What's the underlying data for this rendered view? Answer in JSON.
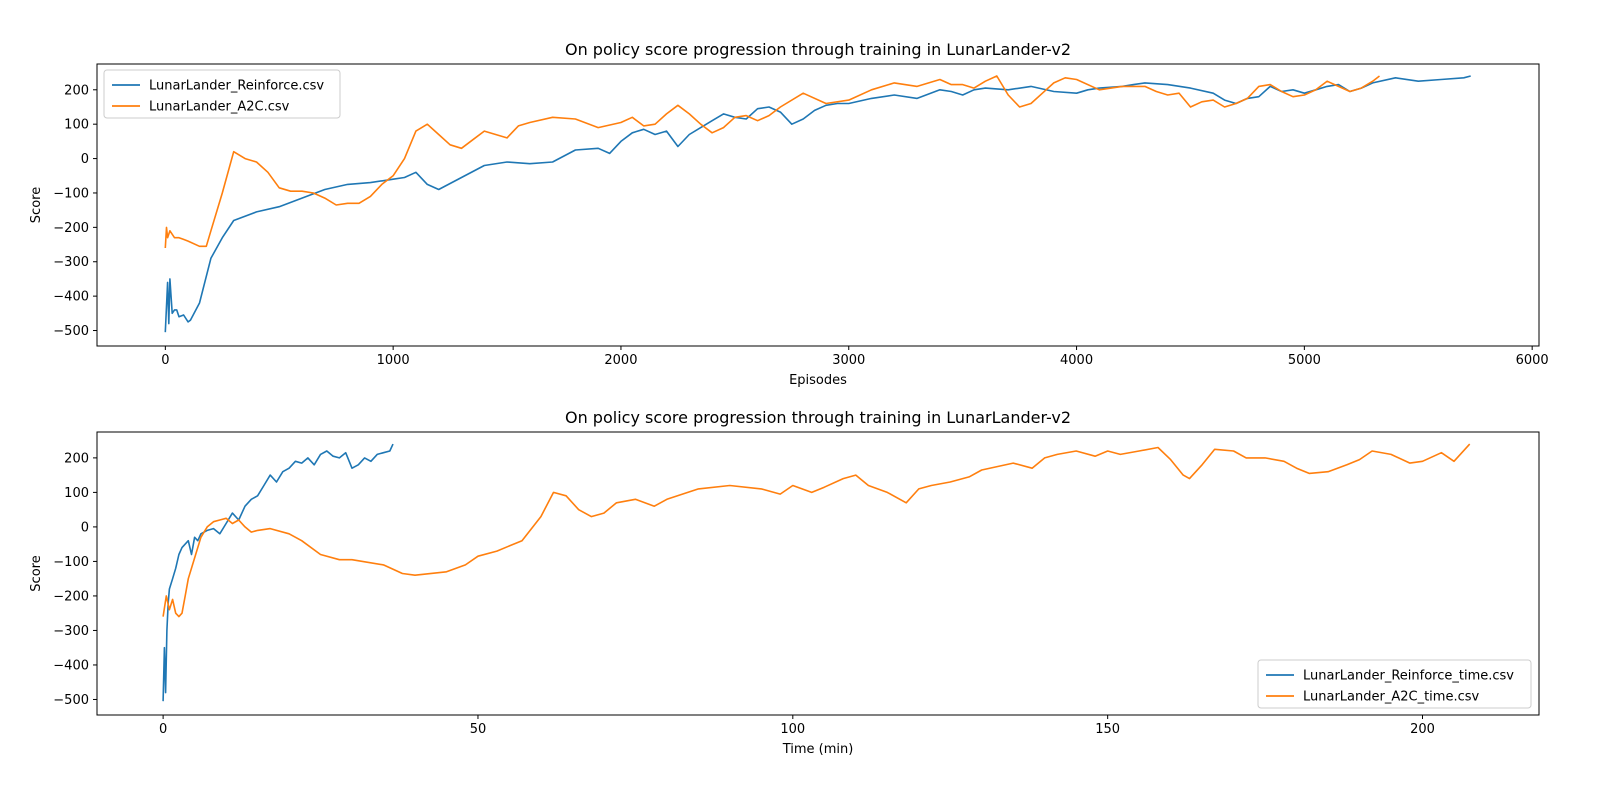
{
  "colors": {
    "series1": "#1f77b4",
    "series2": "#ff7f0e"
  },
  "chart_data": [
    {
      "type": "line",
      "title": "On policy score progression through training in LunarLander-v2",
      "xlabel": "Episodes",
      "ylabel": "Score",
      "xlim": [
        -300,
        6030
      ],
      "ylim": [
        -545,
        275
      ],
      "xticks": [
        0,
        1000,
        2000,
        3000,
        4000,
        5000,
        6000
      ],
      "xtick_labels": [
        "0",
        "1000",
        "2000",
        "3000",
        "4000",
        "5000",
        "6000"
      ],
      "yticks": [
        -500,
        -400,
        -300,
        -200,
        -100,
        0,
        100,
        200
      ],
      "ytick_labels": [
        "−500",
        "−400",
        "−300",
        "−200",
        "−100",
        "0",
        "100",
        "200"
      ],
      "legend_position": "upper-left",
      "series": [
        {
          "name": "LunarLander_Reinforce.csv",
          "color": "#1f77b4",
          "x": [
            0,
            10,
            15,
            20,
            30,
            40,
            50,
            60,
            80,
            100,
            110,
            150,
            200,
            250,
            300,
            400,
            500,
            600,
            700,
            800,
            900,
            1000,
            1050,
            1100,
            1150,
            1200,
            1300,
            1400,
            1500,
            1600,
            1700,
            1800,
            1900,
            1950,
            2000,
            2050,
            2100,
            2150,
            2200,
            2250,
            2300,
            2400,
            2450,
            2500,
            2550,
            2600,
            2650,
            2700,
            2750,
            2800,
            2850,
            2900,
            2950,
            3000,
            3100,
            3200,
            3300,
            3400,
            3450,
            3500,
            3550,
            3600,
            3700,
            3800,
            3900,
            4000,
            4050,
            4100,
            4200,
            4250,
            4300,
            4400,
            4500,
            4600,
            4650,
            4700,
            4750,
            4800,
            4850,
            4900,
            4950,
            5000,
            5050,
            5100,
            5150,
            5200,
            5250,
            5300,
            5400,
            5500,
            5600,
            5700,
            5730
          ],
          "y": [
            -505,
            -360,
            -480,
            -350,
            -450,
            -440,
            -440,
            -460,
            -455,
            -475,
            -470,
            -420,
            -290,
            -230,
            -180,
            -155,
            -140,
            -115,
            -90,
            -75,
            -70,
            -60,
            -55,
            -40,
            -75,
            -90,
            -55,
            -20,
            -10,
            -15,
            -10,
            25,
            30,
            15,
            50,
            75,
            85,
            70,
            80,
            35,
            70,
            110,
            130,
            120,
            115,
            145,
            150,
            135,
            100,
            115,
            140,
            155,
            160,
            160,
            175,
            185,
            175,
            200,
            195,
            185,
            200,
            205,
            200,
            210,
            195,
            190,
            200,
            205,
            210,
            215,
            220,
            215,
            205,
            190,
            170,
            160,
            175,
            180,
            210,
            195,
            200,
            190,
            200,
            210,
            215,
            195,
            205,
            220,
            235,
            225,
            230,
            235,
            240
          ]
        },
        {
          "name": "LunarLander_A2C.csv",
          "color": "#ff7f0e",
          "x": [
            0,
            5,
            10,
            20,
            40,
            60,
            80,
            100,
            150,
            180,
            200,
            250,
            300,
            350,
            400,
            450,
            500,
            550,
            600,
            650,
            700,
            750,
            800,
            850,
            900,
            950,
            1000,
            1050,
            1100,
            1150,
            1200,
            1250,
            1300,
            1350,
            1400,
            1500,
            1550,
            1600,
            1700,
            1800,
            1900,
            2000,
            2050,
            2100,
            2150,
            2200,
            2250,
            2300,
            2350,
            2400,
            2450,
            2500,
            2550,
            2600,
            2650,
            2700,
            2800,
            2900,
            3000,
            3100,
            3200,
            3300,
            3400,
            3450,
            3500,
            3550,
            3600,
            3650,
            3700,
            3750,
            3800,
            3850,
            3900,
            3950,
            4000,
            4100,
            4200,
            4300,
            4350,
            4400,
            4450,
            4500,
            4550,
            4600,
            4650,
            4700,
            4750,
            4800,
            4850,
            4900,
            4950,
            5000,
            5050,
            5100,
            5150,
            5200,
            5250,
            5300,
            5330
          ],
          "y": [
            -260,
            -200,
            -230,
            -210,
            -230,
            -230,
            -235,
            -240,
            -255,
            -255,
            -210,
            -100,
            20,
            0,
            -10,
            -40,
            -85,
            -95,
            -95,
            -100,
            -115,
            -135,
            -130,
            -130,
            -110,
            -75,
            -50,
            0,
            80,
            100,
            70,
            40,
            30,
            55,
            80,
            60,
            95,
            105,
            120,
            115,
            90,
            105,
            120,
            95,
            100,
            130,
            155,
            130,
            100,
            75,
            90,
            120,
            125,
            110,
            125,
            150,
            190,
            160,
            170,
            200,
            220,
            210,
            230,
            215,
            215,
            205,
            225,
            240,
            185,
            150,
            160,
            190,
            220,
            235,
            230,
            200,
            210,
            210,
            195,
            185,
            190,
            150,
            165,
            170,
            150,
            160,
            175,
            210,
            215,
            195,
            180,
            185,
            200,
            225,
            210,
            195,
            205,
            225,
            240
          ]
        }
      ]
    },
    {
      "type": "line",
      "title": "On policy score progression through training in LunarLander-v2",
      "xlabel": "Time (min)",
      "ylabel": "Score",
      "xlim": [
        -10.5,
        218.5
      ],
      "ylim": [
        -545,
        275
      ],
      "xticks": [
        0,
        50,
        100,
        150,
        200
      ],
      "xtick_labels": [
        "0",
        "50",
        "100",
        "150",
        "200"
      ],
      "yticks": [
        -500,
        -400,
        -300,
        -200,
        -100,
        0,
        100,
        200
      ],
      "ytick_labels": [
        "−500",
        "−400",
        "−300",
        "−200",
        "−100",
        "0",
        "100",
        "200"
      ],
      "legend_position": "lower-right",
      "series": [
        {
          "name": "LunarLander_Reinforce_time.csv",
          "color": "#1f77b4",
          "x": [
            0,
            0.2,
            0.4,
            0.6,
            0.8,
            1,
            1.5,
            2,
            2.5,
            3,
            4,
            4.5,
            5,
            5.5,
            6,
            7,
            8,
            9,
            10,
            11,
            12,
            13,
            14,
            15,
            16,
            17,
            18,
            19,
            20,
            21,
            22,
            23,
            24,
            25,
            26,
            27,
            28,
            29,
            30,
            31,
            32,
            33,
            34,
            35,
            36,
            36.5
          ],
          "y": [
            -505,
            -350,
            -480,
            -300,
            -220,
            -180,
            -150,
            -120,
            -80,
            -60,
            -40,
            -80,
            -30,
            -40,
            -20,
            -10,
            -5,
            -20,
            10,
            40,
            20,
            60,
            80,
            90,
            120,
            150,
            130,
            160,
            170,
            190,
            185,
            200,
            180,
            210,
            220,
            205,
            200,
            215,
            170,
            180,
            200,
            190,
            210,
            215,
            220,
            240
          ]
        },
        {
          "name": "LunarLander_A2C_time.csv",
          "color": "#ff7f0e",
          "x": [
            0,
            0.5,
            1,
            1.5,
            2,
            2.5,
            3,
            3.5,
            4,
            5,
            6,
            7,
            8,
            9,
            10,
            11,
            12,
            13,
            14,
            15,
            17,
            20,
            22,
            25,
            28,
            30,
            35,
            38,
            40,
            45,
            48,
            50,
            53,
            55,
            57,
            60,
            62,
            64,
            66,
            68,
            70,
            72,
            75,
            78,
            80,
            85,
            90,
            95,
            98,
            100,
            103,
            105,
            108,
            110,
            112,
            115,
            118,
            120,
            122,
            125,
            128,
            130,
            135,
            138,
            140,
            142,
            145,
            148,
            150,
            152,
            155,
            158,
            160,
            162,
            163,
            165,
            167,
            170,
            172,
            175,
            178,
            180,
            182,
            185,
            188,
            190,
            192,
            195,
            198,
            200,
            203,
            205,
            207.5
          ],
          "y": [
            -260,
            -200,
            -240,
            -210,
            -250,
            -260,
            -250,
            -200,
            -150,
            -90,
            -30,
            0,
            15,
            20,
            25,
            10,
            20,
            0,
            -15,
            -10,
            -5,
            -20,
            -40,
            -80,
            -95,
            -95,
            -110,
            -135,
            -140,
            -130,
            -110,
            -85,
            -70,
            -55,
            -40,
            30,
            100,
            90,
            50,
            30,
            40,
            70,
            80,
            60,
            80,
            110,
            120,
            110,
            95,
            120,
            100,
            115,
            140,
            150,
            120,
            100,
            70,
            110,
            120,
            130,
            145,
            165,
            185,
            170,
            200,
            210,
            220,
            205,
            220,
            210,
            220,
            230,
            195,
            150,
            140,
            180,
            225,
            220,
            200,
            200,
            190,
            170,
            155,
            160,
            180,
            195,
            220,
            210,
            185,
            190,
            215,
            190,
            240
          ]
        }
      ]
    }
  ]
}
